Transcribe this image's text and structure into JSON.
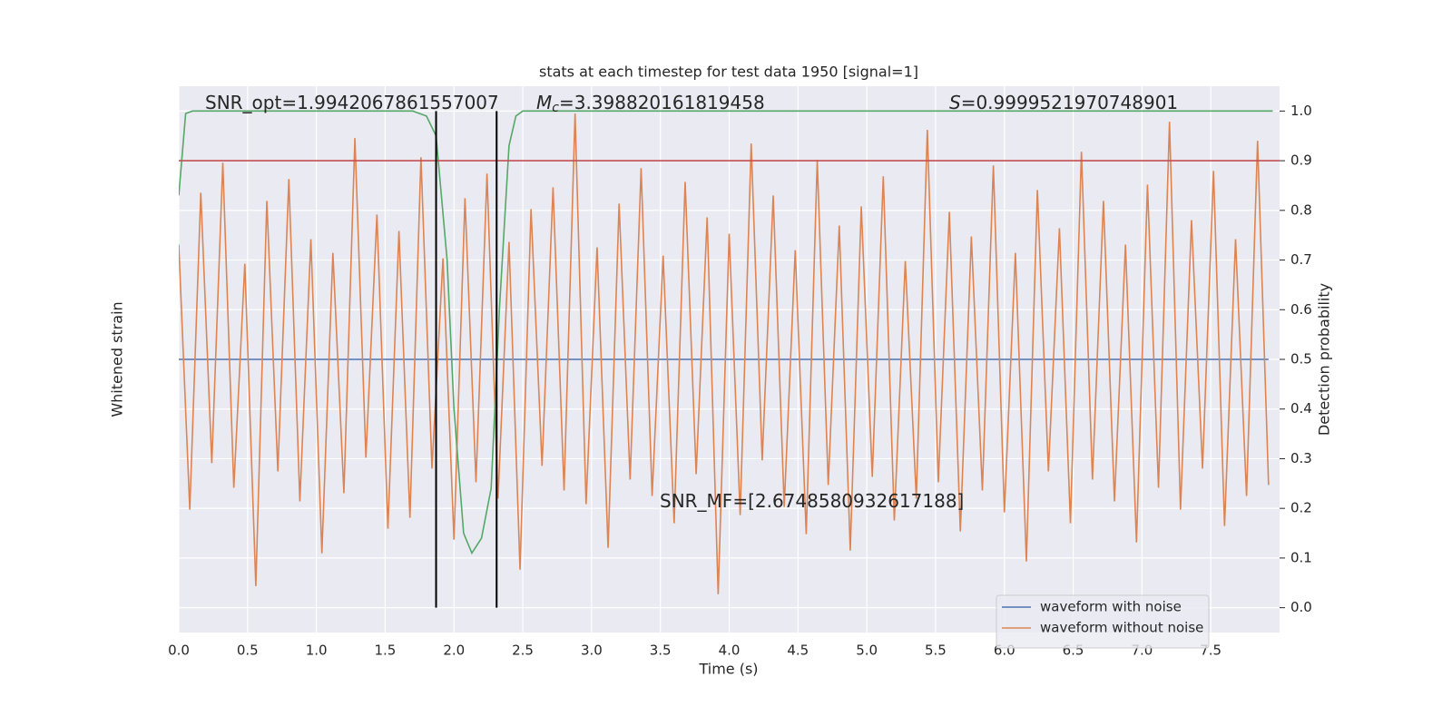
{
  "chart_data": {
    "type": "line",
    "title": "stats at each timestep for test data 1950 [signal=1]",
    "xlabel": "Time (s)",
    "ylabel": "Whitened strain",
    "y2label": "Detection probability",
    "xlim": [
      0,
      8
    ],
    "xticks": [
      {
        "value": 0,
        "label": "0.0"
      },
      0.5,
      {
        "value": 1,
        "label": "1.0"
      },
      1.5,
      {
        "value": 2,
        "label": "2.0"
      },
      2.5,
      {
        "value": 3,
        "label": "3.0"
      },
      3.5,
      {
        "value": 4,
        "label": "4.0"
      },
      4.5,
      {
        "value": 5,
        "label": "5.0"
      },
      5.5,
      {
        "value": 6,
        "label": "6.0"
      },
      6.5,
      {
        "value": 7,
        "label": "7.0"
      },
      7.5
    ],
    "ylim": [
      -1,
      1
    ],
    "y2lim": [
      -0.05,
      1.05
    ],
    "y2ticks": [
      {
        "value": 0,
        "label": "0.0"
      },
      0.1,
      0.2,
      0.3,
      0.4,
      0.5,
      0.6,
      0.7,
      0.8,
      0.9,
      {
        "value": 1,
        "label": "1.0"
      }
    ],
    "grid": true,
    "legend": "lower right",
    "series": [
      {
        "name": "waveform with noise",
        "color": "#4c72b0",
        "x": [
          0,
          0.08,
          0.16,
          0.24,
          0.32,
          0.4,
          0.48,
          0.56,
          0.64,
          0.72,
          0.8,
          0.88,
          0.96,
          1.04,
          1.12,
          1.2,
          1.28,
          1.36,
          1.44,
          1.52,
          1.6,
          1.68,
          1.76,
          1.84,
          1.92,
          2,
          2.08,
          2.16,
          2.24,
          2.32,
          2.4,
          2.48,
          2.56,
          2.64,
          2.72,
          2.8,
          2.88,
          2.96,
          3.04,
          3.12,
          3.2,
          3.28,
          3.36,
          3.44,
          3.52,
          3.6,
          3.68,
          3.76,
          3.84,
          3.92,
          4,
          4.08,
          4.16,
          4.24,
          4.32,
          4.4,
          4.48,
          4.56,
          4.64,
          4.72,
          4.8,
          4.88,
          4.96,
          5.04,
          5.12,
          5.2,
          5.28,
          5.36,
          5.44,
          5.52,
          5.6,
          5.68,
          5.76,
          5.84,
          5.92,
          6,
          6.08,
          6.16,
          6.24,
          6.32,
          6.4,
          6.48,
          6.56,
          6.64,
          6.72,
          6.8,
          6.88,
          6.96,
          7.04,
          7.12,
          7.2,
          7.28,
          7.36,
          7.44,
          7.52,
          7.6,
          7.68,
          7.76,
          7.84,
          7.92
        ],
        "values": [
          0,
          0,
          0,
          0,
          0,
          0,
          0,
          0,
          0,
          0,
          0,
          0,
          0,
          0,
          0,
          0,
          0,
          0,
          0,
          0,
          0,
          0,
          0,
          0,
          0,
          0,
          0,
          0,
          0,
          0,
          0,
          0,
          0,
          0,
          0,
          0,
          0,
          0,
          0,
          0,
          0,
          0,
          0,
          0,
          0,
          0,
          0,
          0,
          0,
          0,
          0,
          0,
          0,
          0,
          0,
          0,
          0,
          0,
          0,
          0,
          0,
          0,
          0,
          0,
          0,
          0,
          0,
          0,
          0,
          0,
          0,
          0,
          0,
          0,
          0,
          0,
          0,
          0,
          0,
          0,
          0,
          0,
          0,
          0,
          0,
          0,
          0,
          0,
          0,
          0,
          0,
          0,
          0,
          0,
          0,
          0,
          0,
          0,
          0,
          0
        ]
      },
      {
        "name": "waveform without noise",
        "color": "#dd8452",
        "x": [
          0,
          0.08,
          0.16,
          0.24,
          0.32,
          0.4,
          0.48,
          0.56,
          0.64,
          0.72,
          0.8,
          0.88,
          0.96,
          1.04,
          1.12,
          1.2,
          1.28,
          1.36,
          1.44,
          1.52,
          1.6,
          1.68,
          1.76,
          1.84,
          1.92,
          2,
          2.08,
          2.16,
          2.24,
          2.32,
          2.4,
          2.48,
          2.56,
          2.64,
          2.72,
          2.8,
          2.88,
          2.96,
          3.04,
          3.12,
          3.2,
          3.28,
          3.36,
          3.44,
          3.52,
          3.6,
          3.68,
          3.76,
          3.84,
          3.92,
          4,
          4.08,
          4.16,
          4.24,
          4.32,
          4.4,
          4.48,
          4.56,
          4.64,
          4.72,
          4.8,
          4.88,
          4.96,
          5.04,
          5.12,
          5.2,
          5.28,
          5.36,
          5.44,
          5.52,
          5.6,
          5.68,
          5.76,
          5.84,
          5.92,
          6,
          6.08,
          6.16,
          6.24,
          6.32,
          6.4,
          6.48,
          6.56,
          6.64,
          6.72,
          6.8,
          6.88,
          6.96,
          7.04,
          7.12,
          7.2,
          7.28,
          7.36,
          7.44,
          7.52,
          7.6,
          7.68,
          7.76,
          7.84,
          7.92
        ],
        "values": [
          0.42,
          -0.55,
          0.61,
          -0.38,
          0.72,
          -0.47,
          0.35,
          -0.83,
          0.58,
          -0.41,
          0.66,
          -0.52,
          0.44,
          -0.71,
          0.39,
          -0.49,
          0.81,
          -0.36,
          0.53,
          -0.62,
          0.47,
          -0.58,
          0.74,
          -0.4,
          0.37,
          -0.66,
          0.59,
          -0.45,
          0.68,
          -0.51,
          0.43,
          -0.77,
          0.55,
          -0.39,
          0.63,
          -0.48,
          0.9,
          -0.53,
          0.41,
          -0.69,
          0.57,
          -0.44,
          0.7,
          -0.5,
          0.38,
          -0.6,
          0.65,
          -0.42,
          0.52,
          -0.86,
          0.46,
          -0.57,
          0.79,
          -0.37,
          0.6,
          -0.54,
          0.4,
          -0.64,
          0.73,
          -0.46,
          0.49,
          -0.7,
          0.56,
          -0.43,
          0.67,
          -0.59,
          0.36,
          -0.51,
          0.84,
          -0.45,
          0.54,
          -0.63,
          0.45,
          -0.48,
          0.71,
          -0.56,
          0.39,
          -0.74,
          0.62,
          -0.41,
          0.48,
          -0.6,
          0.76,
          -0.44,
          0.58,
          -0.52,
          0.42,
          -0.67,
          0.64,
          -0.47,
          0.87,
          -0.55,
          0.51,
          -0.4,
          0.69,
          -0.61,
          0.44,
          -0.5,
          0.8,
          -0.46
        ]
      },
      {
        "color": "#55a868",
        "axis": "y2",
        "x": [
          0,
          0.05,
          0.1,
          1.7,
          1.8,
          1.87,
          1.95,
          2.0,
          2.07,
          2.13,
          2.2,
          2.27,
          2.33,
          2.4,
          2.45,
          2.5,
          7.95
        ],
        "values": [
          0.83,
          0.995,
          1.0,
          1.0,
          0.99,
          0.95,
          0.7,
          0.4,
          0.15,
          0.11,
          0.14,
          0.24,
          0.6,
          0.93,
          0.99,
          1.0,
          1.0
        ]
      }
    ],
    "threshold": {
      "value": 0.9,
      "color": "#c44e52",
      "axis": "y2"
    },
    "vlines": {
      "x": [
        1.87,
        2.31
      ],
      "from": 0,
      "to": 1,
      "color": "#000000"
    },
    "annotations": [
      {
        "text": "SNR_opt=1.9942067861557007"
      },
      {
        "symbol": "M",
        "subscript": "c",
        "text": "=3.398820161819458"
      },
      {
        "symbol": "S",
        "text": "=0.9999521970748901"
      },
      {
        "text": "SNR_MF=[2.6748580932617188]"
      }
    ]
  }
}
